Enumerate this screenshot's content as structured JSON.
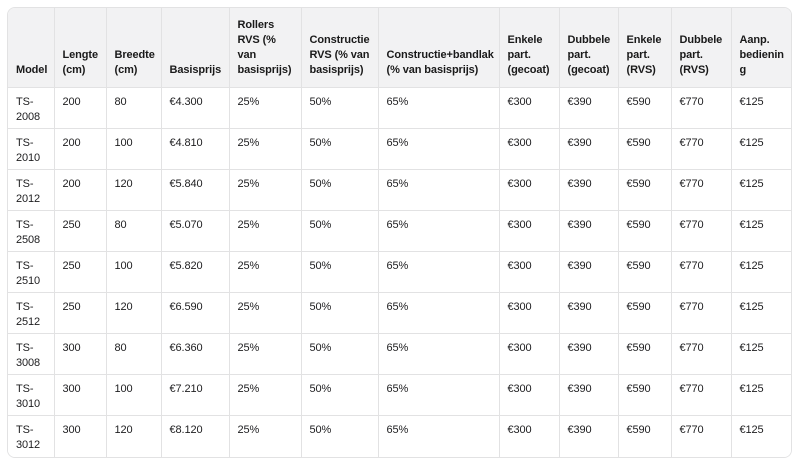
{
  "table": {
    "columns": [
      "Model",
      "Lengte (cm)",
      "Breedte (cm)",
      "Basisprijs",
      "Rollers RVS (% van basisprijs)",
      "Constructie RVS (% van basisprijs)",
      "Constructie+bandlak (% van basisprijs)",
      "Enkele part. (gecoat)",
      "Dubbele part. (gecoat)",
      "Enkele part. (RVS)",
      "Dubbele part. (RVS)",
      "Aanp. bediening"
    ],
    "rows": [
      [
        "TS-2008",
        "200",
        "80",
        "€4.300",
        "25%",
        "50%",
        "65%",
        "€300",
        "€390",
        "€590",
        "€770",
        "€125"
      ],
      [
        "TS-2010",
        "200",
        "100",
        "€4.810",
        "25%",
        "50%",
        "65%",
        "€300",
        "€390",
        "€590",
        "€770",
        "€125"
      ],
      [
        "TS-2012",
        "200",
        "120",
        "€5.840",
        "25%",
        "50%",
        "65%",
        "€300",
        "€390",
        "€590",
        "€770",
        "€125"
      ],
      [
        "TS-2508",
        "250",
        "80",
        "€5.070",
        "25%",
        "50%",
        "65%",
        "€300",
        "€390",
        "€590",
        "€770",
        "€125"
      ],
      [
        "TS-2510",
        "250",
        "100",
        "€5.820",
        "25%",
        "50%",
        "65%",
        "€300",
        "€390",
        "€590",
        "€770",
        "€125"
      ],
      [
        "TS-2512",
        "250",
        "120",
        "€6.590",
        "25%",
        "50%",
        "65%",
        "€300",
        "€390",
        "€590",
        "€770",
        "€125"
      ],
      [
        "TS-3008",
        "300",
        "80",
        "€6.360",
        "25%",
        "50%",
        "65%",
        "€300",
        "€390",
        "€590",
        "€770",
        "€125"
      ],
      [
        "TS-3010",
        "300",
        "100",
        "€7.210",
        "25%",
        "50%",
        "65%",
        "€300",
        "€390",
        "€590",
        "€770",
        "€125"
      ],
      [
        "TS-3012",
        "300",
        "120",
        "€8.120",
        "25%",
        "50%",
        "65%",
        "€300",
        "€390",
        "€590",
        "€770",
        "€125"
      ]
    ]
  },
  "colors": {
    "header_background": "#f2f2f3",
    "border": "#e2e2e3",
    "text": "#1d1d1f",
    "page_background": "#ffffff"
  }
}
